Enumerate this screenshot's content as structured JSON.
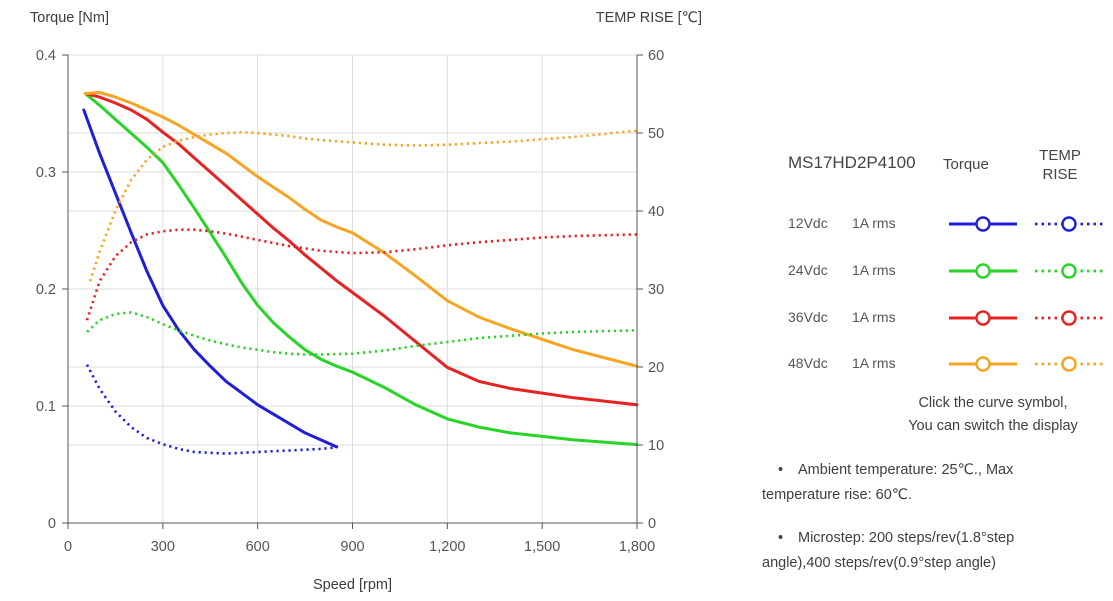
{
  "chart_data": {
    "type": "line",
    "title": "",
    "grid_color": "#dcdcdc",
    "axis_color": "#555555",
    "label_color": "#555555",
    "x_axis": {
      "title": "Speed [rpm]",
      "min": 0,
      "max": 1800,
      "ticks": [
        0,
        300,
        600,
        900,
        1200,
        1500,
        1800
      ],
      "tick_labels": [
        "0",
        "300",
        "600",
        "900",
        "1,200",
        "1,500",
        "1,800"
      ]
    },
    "y_left": {
      "title": "Torque  [Nm]",
      "min": 0,
      "max": 0.4,
      "ticks": [
        0,
        0.1,
        0.2,
        0.3,
        0.4
      ],
      "tick_labels": [
        "0",
        "0.1",
        "0.2",
        "0.3",
        "0.4"
      ]
    },
    "y_right": {
      "title": "TEMP RISE [℃]",
      "min": 0,
      "max": 60,
      "ticks": [
        0,
        10,
        20,
        30,
        40,
        50,
        60
      ],
      "tick_labels": [
        "0",
        "10",
        "20",
        "30",
        "40",
        "50",
        "60"
      ]
    },
    "series": [
      {
        "id": "torque-12v",
        "label": "12Vdc 1A rms Torque",
        "axis": "left",
        "line": "solid",
        "color": "#1f1fd6",
        "points": [
          [
            50,
            0.353
          ],
          [
            100,
            0.316
          ],
          [
            150,
            0.282
          ],
          [
            200,
            0.248
          ],
          [
            250,
            0.215
          ],
          [
            300,
            0.186
          ],
          [
            350,
            0.165
          ],
          [
            400,
            0.148
          ],
          [
            450,
            0.134
          ],
          [
            500,
            0.121
          ],
          [
            550,
            0.111
          ],
          [
            600,
            0.101
          ],
          [
            650,
            0.093
          ],
          [
            700,
            0.085
          ],
          [
            750,
            0.077
          ],
          [
            800,
            0.071
          ],
          [
            850,
            0.065
          ]
        ]
      },
      {
        "id": "torque-24v",
        "label": "24Vdc 1A rms Torque",
        "axis": "left",
        "line": "solid",
        "color": "#28d428",
        "points": [
          [
            55,
            0.367
          ],
          [
            100,
            0.357
          ],
          [
            150,
            0.345
          ],
          [
            200,
            0.333
          ],
          [
            250,
            0.321
          ],
          [
            300,
            0.308
          ],
          [
            350,
            0.289
          ],
          [
            400,
            0.269
          ],
          [
            450,
            0.248
          ],
          [
            500,
            0.227
          ],
          [
            550,
            0.205
          ],
          [
            600,
            0.186
          ],
          [
            650,
            0.171
          ],
          [
            700,
            0.159
          ],
          [
            750,
            0.148
          ],
          [
            800,
            0.14
          ],
          [
            850,
            0.134
          ],
          [
            900,
            0.129
          ],
          [
            1000,
            0.116
          ],
          [
            1100,
            0.101
          ],
          [
            1200,
            0.089
          ],
          [
            1300,
            0.082
          ],
          [
            1400,
            0.077
          ],
          [
            1500,
            0.074
          ],
          [
            1600,
            0.071
          ],
          [
            1700,
            0.069
          ],
          [
            1800,
            0.067
          ]
        ]
      },
      {
        "id": "torque-36v",
        "label": "36Vdc 1A rms Torque",
        "axis": "left",
        "line": "solid",
        "color": "#e62222",
        "points": [
          [
            55,
            0.367
          ],
          [
            100,
            0.364
          ],
          [
            150,
            0.359
          ],
          [
            200,
            0.353
          ],
          [
            250,
            0.345
          ],
          [
            300,
            0.334
          ],
          [
            350,
            0.324
          ],
          [
            400,
            0.312
          ],
          [
            450,
            0.3
          ],
          [
            500,
            0.288
          ],
          [
            550,
            0.276
          ],
          [
            600,
            0.264
          ],
          [
            650,
            0.252
          ],
          [
            700,
            0.241
          ],
          [
            750,
            0.229
          ],
          [
            800,
            0.218
          ],
          [
            850,
            0.207
          ],
          [
            900,
            0.197
          ],
          [
            1000,
            0.177
          ],
          [
            1100,
            0.155
          ],
          [
            1200,
            0.133
          ],
          [
            1300,
            0.121
          ],
          [
            1400,
            0.115
          ],
          [
            1500,
            0.111
          ],
          [
            1600,
            0.107
          ],
          [
            1700,
            0.104
          ],
          [
            1800,
            0.101
          ]
        ]
      },
      {
        "id": "torque-48v",
        "label": "48Vdc 1A rms Torque",
        "axis": "left",
        "line": "solid",
        "color": "#f6a422",
        "points": [
          [
            55,
            0.367
          ],
          [
            100,
            0.368
          ],
          [
            150,
            0.364
          ],
          [
            200,
            0.359
          ],
          [
            250,
            0.353
          ],
          [
            300,
            0.347
          ],
          [
            350,
            0.34
          ],
          [
            400,
            0.332
          ],
          [
            450,
            0.324
          ],
          [
            500,
            0.316
          ],
          [
            550,
            0.306
          ],
          [
            600,
            0.296
          ],
          [
            650,
            0.287
          ],
          [
            700,
            0.278
          ],
          [
            750,
            0.268
          ],
          [
            800,
            0.259
          ],
          [
            850,
            0.253
          ],
          [
            900,
            0.248
          ],
          [
            1000,
            0.231
          ],
          [
            1100,
            0.211
          ],
          [
            1200,
            0.19
          ],
          [
            1300,
            0.176
          ],
          [
            1400,
            0.166
          ],
          [
            1500,
            0.157
          ],
          [
            1600,
            0.148
          ],
          [
            1700,
            0.141
          ],
          [
            1800,
            0.134
          ]
        ]
      },
      {
        "id": "temp-12v",
        "label": "12Vdc 1A rms TEMP RISE",
        "axis": "right",
        "line": "dotted",
        "color": "#1f1fd6",
        "points": [
          [
            60,
            20.3
          ],
          [
            100,
            17.2
          ],
          [
            150,
            14.3
          ],
          [
            200,
            12.3
          ],
          [
            250,
            10.9
          ],
          [
            300,
            10.1
          ],
          [
            350,
            9.5
          ],
          [
            400,
            9.1
          ],
          [
            450,
            9.0
          ],
          [
            500,
            8.9
          ],
          [
            550,
            9.0
          ],
          [
            600,
            9.1
          ],
          [
            650,
            9.2
          ],
          [
            700,
            9.3
          ],
          [
            750,
            9.4
          ],
          [
            800,
            9.5
          ],
          [
            850,
            9.7
          ]
        ]
      },
      {
        "id": "temp-24v",
        "label": "24Vdc 1A rms TEMP RISE",
        "axis": "right",
        "line": "dotted",
        "color": "#28d428",
        "points": [
          [
            60,
            24.5
          ],
          [
            100,
            26.0
          ],
          [
            150,
            26.8
          ],
          [
            200,
            27.0
          ],
          [
            250,
            26.4
          ],
          [
            300,
            25.5
          ],
          [
            350,
            24.7
          ],
          [
            400,
            24.0
          ],
          [
            450,
            23.4
          ],
          [
            500,
            22.9
          ],
          [
            550,
            22.5
          ],
          [
            600,
            22.2
          ],
          [
            650,
            21.9
          ],
          [
            700,
            21.7
          ],
          [
            750,
            21.6
          ],
          [
            800,
            21.6
          ],
          [
            900,
            21.7
          ],
          [
            1000,
            22.1
          ],
          [
            1100,
            22.7
          ],
          [
            1200,
            23.2
          ],
          [
            1300,
            23.7
          ],
          [
            1400,
            24.0
          ],
          [
            1500,
            24.3
          ],
          [
            1600,
            24.5
          ],
          [
            1700,
            24.6
          ],
          [
            1800,
            24.7
          ]
        ]
      },
      {
        "id": "temp-36v",
        "label": "36Vdc 1A rms TEMP RISE",
        "axis": "right",
        "line": "dotted",
        "color": "#e62222",
        "points": [
          [
            60,
            26.0
          ],
          [
            100,
            31.0
          ],
          [
            150,
            34.2
          ],
          [
            200,
            36.0
          ],
          [
            250,
            37.0
          ],
          [
            300,
            37.4
          ],
          [
            350,
            37.6
          ],
          [
            400,
            37.6
          ],
          [
            450,
            37.4
          ],
          [
            500,
            37.1
          ],
          [
            550,
            36.7
          ],
          [
            600,
            36.3
          ],
          [
            650,
            35.9
          ],
          [
            700,
            35.5
          ],
          [
            750,
            35.2
          ],
          [
            800,
            34.9
          ],
          [
            900,
            34.6
          ],
          [
            1000,
            34.7
          ],
          [
            1100,
            35.1
          ],
          [
            1200,
            35.6
          ],
          [
            1300,
            36.0
          ],
          [
            1400,
            36.3
          ],
          [
            1500,
            36.6
          ],
          [
            1600,
            36.8
          ],
          [
            1700,
            36.9
          ],
          [
            1800,
            37.0
          ]
        ]
      },
      {
        "id": "temp-48v",
        "label": "48Vdc 1A rms TEMP RISE",
        "axis": "right",
        "line": "dotted",
        "color": "#f6a422",
        "points": [
          [
            70,
            31.0
          ],
          [
            100,
            34.8
          ],
          [
            150,
            40.0
          ],
          [
            200,
            44.0
          ],
          [
            250,
            46.6
          ],
          [
            300,
            48.2
          ],
          [
            350,
            49.0
          ],
          [
            400,
            49.5
          ],
          [
            450,
            49.8
          ],
          [
            500,
            50.0
          ],
          [
            550,
            50.1
          ],
          [
            600,
            50.0
          ],
          [
            650,
            49.8
          ],
          [
            700,
            49.6
          ],
          [
            750,
            49.3
          ],
          [
            800,
            49.1
          ],
          [
            900,
            48.8
          ],
          [
            1000,
            48.5
          ],
          [
            1100,
            48.4
          ],
          [
            1200,
            48.5
          ],
          [
            1300,
            48.7
          ],
          [
            1400,
            48.9
          ],
          [
            1500,
            49.2
          ],
          [
            1600,
            49.5
          ],
          [
            1700,
            49.9
          ],
          [
            1800,
            50.3
          ]
        ]
      }
    ]
  },
  "legend": {
    "model": "MS17HD2P4100",
    "columns": {
      "torque": "Torque",
      "temp_line1": "TEMP",
      "temp_line2": "RISE"
    },
    "rows": [
      {
        "voltage": "12Vdc",
        "current": "1A rms",
        "color": "#1f1fd6"
      },
      {
        "voltage": "24Vdc",
        "current": "1A rms",
        "color": "#28d428"
      },
      {
        "voltage": "36Vdc",
        "current": "1A rms",
        "color": "#e62222"
      },
      {
        "voltage": "48Vdc",
        "current": "1A rms",
        "color": "#f6a422"
      }
    ]
  },
  "notes": {
    "bullet": "•",
    "switch": {
      "line1": "Click the curve symbol,",
      "line2": "You can switch the display"
    },
    "ambient": {
      "line1": "Ambient temperature: 25℃.,  Max",
      "line2": "temperature rise: 60℃."
    },
    "microstep": {
      "line1": "Microstep: 200 steps/rev(1.8°step",
      "line2": "angle),400 steps/rev(0.9°step angle)"
    }
  }
}
